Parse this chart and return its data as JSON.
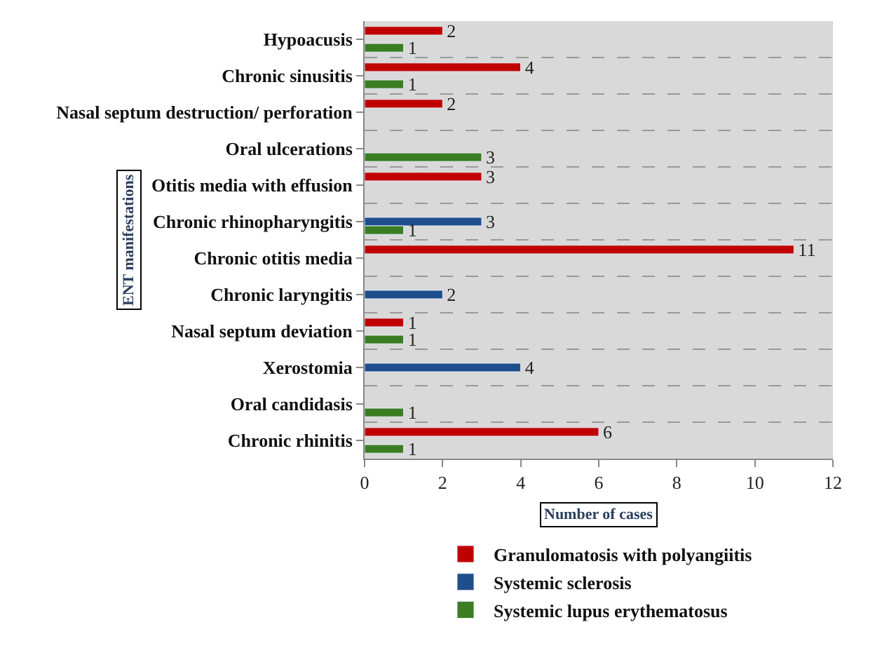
{
  "chart_data": {
    "type": "bar",
    "orientation": "horizontal",
    "xlabel": "Number of cases",
    "ylabel": "ENT manifestations",
    "categories": [
      "Hypoacusis",
      "Chronic sinusitis",
      "Nasal septum destruction/ perforation",
      "Oral ulcerations",
      "Otitis media with effusion",
      "Chronic rhinopharyngitis",
      "Chronic otitis media",
      "Chronic laryngitis",
      "Nasal septum deviation",
      "Xerostomia",
      "Oral candidasis",
      "Chronic rhinitis"
    ],
    "series": [
      {
        "name": "Granulomatosis with polyangiitis",
        "color": "#c00000",
        "values": [
          2,
          4,
          2,
          null,
          3,
          null,
          11,
          null,
          1,
          null,
          null,
          6
        ]
      },
      {
        "name": "Systemic sclerosis",
        "color": "#1f4e8c",
        "values": [
          null,
          null,
          null,
          null,
          null,
          3,
          null,
          2,
          null,
          4,
          null,
          null
        ]
      },
      {
        "name": "Systemic lupus erythematosus",
        "color": "#3a7d22",
        "values": [
          1,
          1,
          null,
          3,
          null,
          1,
          null,
          null,
          1,
          null,
          1,
          1
        ]
      }
    ],
    "xlim": [
      0,
      12
    ],
    "xticks": [
      0,
      2,
      4,
      6,
      8,
      10,
      12
    ],
    "data_labels": true,
    "grid": false,
    "legend": "bottom"
  }
}
